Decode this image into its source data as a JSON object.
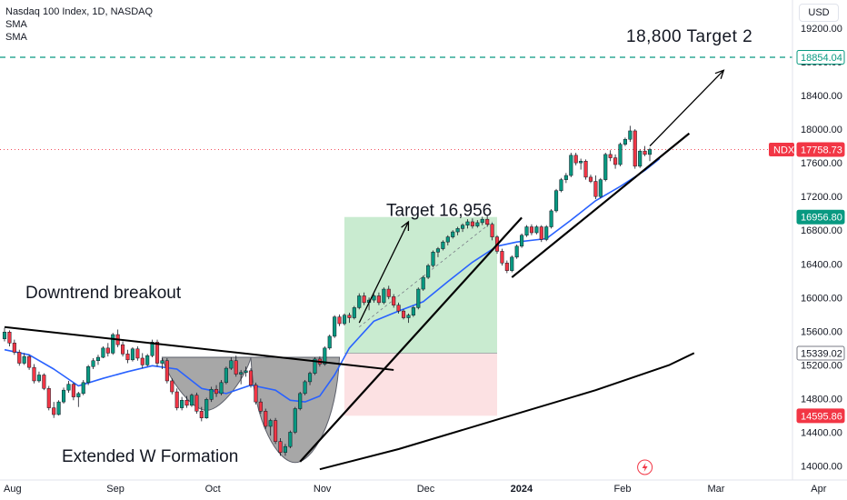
{
  "header": {
    "title": "Nasdaq 100 Index, 1D, NASDAQ",
    "indicators": [
      "SMA",
      "SMA"
    ]
  },
  "currency_button": "USD",
  "chart_data": {
    "type": "candlestick",
    "symbol": "NDX",
    "ylim": [
      13940,
      19380
    ],
    "y_ticks": [
      14000,
      14400,
      14800,
      15200,
      15600,
      16000,
      16400,
      16800,
      17200,
      17600,
      18000,
      18400,
      18800,
      19200
    ],
    "y_tick_labels": [
      "14000.00",
      "14400.00",
      "14800.00",
      "15200.00",
      "15600.00",
      "16000.00",
      "16400.00",
      "16800.00",
      "17200.00",
      "17600.00",
      "18000.00",
      "18400.00",
      "18800.00",
      "19200.00"
    ],
    "x_labels": [
      {
        "label": "Aug",
        "index": 0
      },
      {
        "label": "Sep",
        "index": 22
      },
      {
        "label": "Oct",
        "index": 42
      },
      {
        "label": "Nov",
        "index": 64
      },
      {
        "label": "Dec",
        "index": 85
      },
      {
        "label": "2024",
        "index": 104,
        "bold": true
      },
      {
        "label": "Feb",
        "index": 125
      },
      {
        "label": "Mar",
        "index": 144
      },
      {
        "label": "Apr",
        "index": 165
      }
    ],
    "price_labels": [
      {
        "text": "18854.04",
        "value": 18854.04,
        "bg": "#ffffff",
        "fg": "#089981",
        "border": "#089981"
      },
      {
        "text": "17758.73",
        "value": 17758.73,
        "bg": "#f23645",
        "fg": "#ffffff",
        "tag": "NDX"
      },
      {
        "text": "16956.80",
        "value": 16956.8,
        "bg": "#089981",
        "fg": "#ffffff"
      },
      {
        "text": "15339.02",
        "value": 15339.02,
        "bg": "#ffffff",
        "fg": "#131722",
        "border": "#787b86"
      },
      {
        "text": "14595.86",
        "value": 14595.86,
        "bg": "#f23645",
        "fg": "#ffffff"
      }
    ],
    "annotations": {
      "downtrend": "Downtrend breakout",
      "w_formation": "Extended W Formation",
      "target1": "Target 16,956",
      "target2": "18,800 Target 2"
    },
    "candles": [
      [
        15510,
        15640,
        15480,
        15590
      ],
      [
        15590,
        15610,
        15420,
        15460
      ],
      [
        15460,
        15500,
        15320,
        15350
      ],
      [
        15350,
        15380,
        15190,
        15220
      ],
      [
        15220,
        15340,
        15200,
        15300
      ],
      [
        15300,
        15320,
        15140,
        15170
      ],
      [
        15170,
        15210,
        14980,
        15010
      ],
      [
        15010,
        15120,
        14990,
        15080
      ],
      [
        15080,
        15100,
        14900,
        14920
      ],
      [
        14920,
        14950,
        14660,
        14690
      ],
      [
        14690,
        14760,
        14570,
        14610
      ],
      [
        14610,
        14780,
        14600,
        14760
      ],
      [
        14760,
        14930,
        14740,
        14900
      ],
      [
        14900,
        15010,
        14870,
        14970
      ],
      [
        14970,
        14990,
        14780,
        14820
      ],
      [
        14820,
        14880,
        14700,
        14860
      ],
      [
        14860,
        15020,
        14840,
        14990
      ],
      [
        14990,
        15200,
        14960,
        15180
      ],
      [
        15180,
        15280,
        15150,
        15250
      ],
      [
        15250,
        15320,
        15200,
        15290
      ],
      [
        15290,
        15420,
        15280,
        15400
      ],
      [
        15400,
        15460,
        15300,
        15340
      ],
      [
        15340,
        15580,
        15320,
        15560
      ],
      [
        15560,
        15620,
        15410,
        15440
      ],
      [
        15440,
        15480,
        15300,
        15330
      ],
      [
        15330,
        15380,
        15220,
        15260
      ],
      [
        15260,
        15410,
        15240,
        15390
      ],
      [
        15390,
        15420,
        15250,
        15280
      ],
      [
        15280,
        15340,
        15160,
        15200
      ],
      [
        15200,
        15330,
        15180,
        15310
      ],
      [
        15310,
        15500,
        15290,
        15470
      ],
      [
        15470,
        15500,
        15180,
        15220
      ],
      [
        15220,
        15280,
        15150,
        15250
      ],
      [
        15250,
        15280,
        14980,
        15010
      ],
      [
        15010,
        15040,
        14850,
        14880
      ],
      [
        14880,
        14920,
        14660,
        14690
      ],
      [
        14690,
        14820,
        14660,
        14780
      ],
      [
        14780,
        14830,
        14690,
        14720
      ],
      [
        14720,
        14860,
        14700,
        14840
      ],
      [
        14840,
        14870,
        14620,
        14650
      ],
      [
        14650,
        14700,
        14530,
        14570
      ],
      [
        14570,
        14810,
        14560,
        14790
      ],
      [
        14790,
        14940,
        14760,
        14910
      ],
      [
        14910,
        14960,
        14820,
        14860
      ],
      [
        14860,
        15020,
        14840,
        14990
      ],
      [
        14990,
        15180,
        14970,
        15160
      ],
      [
        15160,
        15290,
        15140,
        15250
      ],
      [
        15250,
        15310,
        15060,
        15090
      ],
      [
        15090,
        15140,
        14970,
        15110
      ],
      [
        15110,
        15180,
        15060,
        15130
      ],
      [
        15130,
        15160,
        14930,
        14960
      ],
      [
        14960,
        14990,
        14730,
        14760
      ],
      [
        14760,
        14800,
        14620,
        14650
      ],
      [
        14650,
        14680,
        14440,
        14470
      ],
      [
        14470,
        14560,
        14360,
        14540
      ],
      [
        14540,
        14570,
        14260,
        14290
      ],
      [
        14290,
        14330,
        14120,
        14160
      ],
      [
        14160,
        14260,
        14120,
        14230
      ],
      [
        14230,
        14420,
        14210,
        14400
      ],
      [
        14400,
        14700,
        14380,
        14680
      ],
      [
        14680,
        14880,
        14660,
        14860
      ],
      [
        14860,
        15020,
        14840,
        15000
      ],
      [
        15000,
        15120,
        14960,
        15100
      ],
      [
        15100,
        15290,
        15080,
        15270
      ],
      [
        15270,
        15300,
        15180,
        15210
      ],
      [
        15210,
        15420,
        15190,
        15400
      ],
      [
        15400,
        15560,
        15380,
        15540
      ],
      [
        15540,
        15790,
        15520,
        15770
      ],
      [
        15770,
        15800,
        15660,
        15690
      ],
      [
        15690,
        15810,
        15670,
        15790
      ],
      [
        15790,
        15820,
        15700,
        15760
      ],
      [
        15760,
        15900,
        15740,
        15880
      ],
      [
        15880,
        16050,
        15860,
        16020
      ],
      [
        16020,
        16060,
        15910,
        15940
      ],
      [
        15940,
        16000,
        15850,
        15970
      ],
      [
        15970,
        16040,
        15940,
        16020
      ],
      [
        16020,
        16060,
        15910,
        15940
      ],
      [
        15940,
        16120,
        15920,
        16100
      ],
      [
        16100,
        16140,
        15980,
        16010
      ],
      [
        16010,
        16040,
        15880,
        15910
      ],
      [
        15910,
        15940,
        15810,
        15840
      ],
      [
        15840,
        15860,
        15740,
        15760
      ],
      [
        15760,
        15810,
        15700,
        15790
      ],
      [
        15790,
        15900,
        15770,
        15880
      ],
      [
        15880,
        16120,
        15860,
        16100
      ],
      [
        16100,
        16260,
        16080,
        16240
      ],
      [
        16240,
        16400,
        16220,
        16380
      ],
      [
        16380,
        16560,
        16360,
        16540
      ],
      [
        16540,
        16600,
        16480,
        16580
      ],
      [
        16580,
        16680,
        16560,
        16660
      ],
      [
        16660,
        16740,
        16620,
        16720
      ],
      [
        16720,
        16800,
        16700,
        16780
      ],
      [
        16780,
        16840,
        16740,
        16820
      ],
      [
        16820,
        16880,
        16780,
        16860
      ],
      [
        16860,
        16930,
        16820,
        16900
      ],
      [
        16900,
        16940,
        16820,
        16850
      ],
      [
        16850,
        16920,
        16830,
        16890
      ],
      [
        16890,
        16960,
        16860,
        16930
      ],
      [
        16930,
        16970,
        16840,
        16870
      ],
      [
        16870,
        16890,
        16680,
        16720
      ],
      [
        16720,
        16740,
        16520,
        16550
      ],
      [
        16550,
        16580,
        16380,
        16410
      ],
      [
        16410,
        16440,
        16290,
        16320
      ],
      [
        16320,
        16500,
        16300,
        16480
      ],
      [
        16480,
        16630,
        16460,
        16610
      ],
      [
        16610,
        16760,
        16590,
        16740
      ],
      [
        16740,
        16860,
        16720,
        16840
      ],
      [
        16840,
        16870,
        16740,
        16770
      ],
      [
        16770,
        16860,
        16750,
        16840
      ],
      [
        16840,
        16860,
        16660,
        16690
      ],
      [
        16690,
        16860,
        16670,
        16840
      ],
      [
        16840,
        17050,
        16820,
        17030
      ],
      [
        17030,
        17290,
        17010,
        17270
      ],
      [
        17270,
        17420,
        17250,
        17400
      ],
      [
        17400,
        17480,
        17360,
        17450
      ],
      [
        17450,
        17720,
        17430,
        17690
      ],
      [
        17690,
        17720,
        17570,
        17600
      ],
      [
        17600,
        17650,
        17520,
        17620
      ],
      [
        17620,
        17640,
        17400,
        17430
      ],
      [
        17430,
        17460,
        17360,
        17380
      ],
      [
        17380,
        17450,
        17170,
        17200
      ],
      [
        17200,
        17420,
        17180,
        17400
      ],
      [
        17400,
        17720,
        17380,
        17700
      ],
      [
        17700,
        17750,
        17620,
        17660
      ],
      [
        17660,
        17700,
        17530,
        17580
      ],
      [
        17580,
        17840,
        17560,
        17820
      ],
      [
        17820,
        17900,
        17800,
        17880
      ],
      [
        17880,
        18040,
        17850,
        17980
      ],
      [
        17980,
        18000,
        17530,
        17560
      ],
      [
        17560,
        17760,
        17540,
        17740
      ],
      [
        17740,
        17800,
        17680,
        17700
      ],
      [
        17700,
        17780,
        17620,
        17758.73
      ]
    ],
    "sma_fast": [
      [
        0,
        15380
      ],
      [
        5,
        15320
      ],
      [
        10,
        15150
      ],
      [
        15,
        14950
      ],
      [
        20,
        15040
      ],
      [
        25,
        15120
      ],
      [
        30,
        15190
      ],
      [
        35,
        15150
      ],
      [
        40,
        14920
      ],
      [
        45,
        14860
      ],
      [
        50,
        14960
      ],
      [
        55,
        14900
      ],
      [
        58,
        14780
      ],
      [
        61,
        14760
      ],
      [
        64,
        14830
      ],
      [
        67,
        15080
      ],
      [
        70,
        15400
      ],
      [
        75,
        15720
      ],
      [
        80,
        15840
      ],
      [
        85,
        15950
      ],
      [
        90,
        16190
      ],
      [
        95,
        16420
      ],
      [
        100,
        16610
      ],
      [
        104,
        16660
      ],
      [
        110,
        16700
      ],
      [
        115,
        16920
      ],
      [
        120,
        17150
      ],
      [
        125,
        17320
      ],
      [
        130,
        17510
      ],
      [
        133,
        17650
      ]
    ],
    "sma_slow": [
      [
        64,
        13960
      ],
      [
        80,
        14200
      ],
      [
        100,
        14550
      ],
      [
        120,
        14900
      ],
      [
        135,
        15200
      ],
      [
        140,
        15340
      ]
    ]
  }
}
